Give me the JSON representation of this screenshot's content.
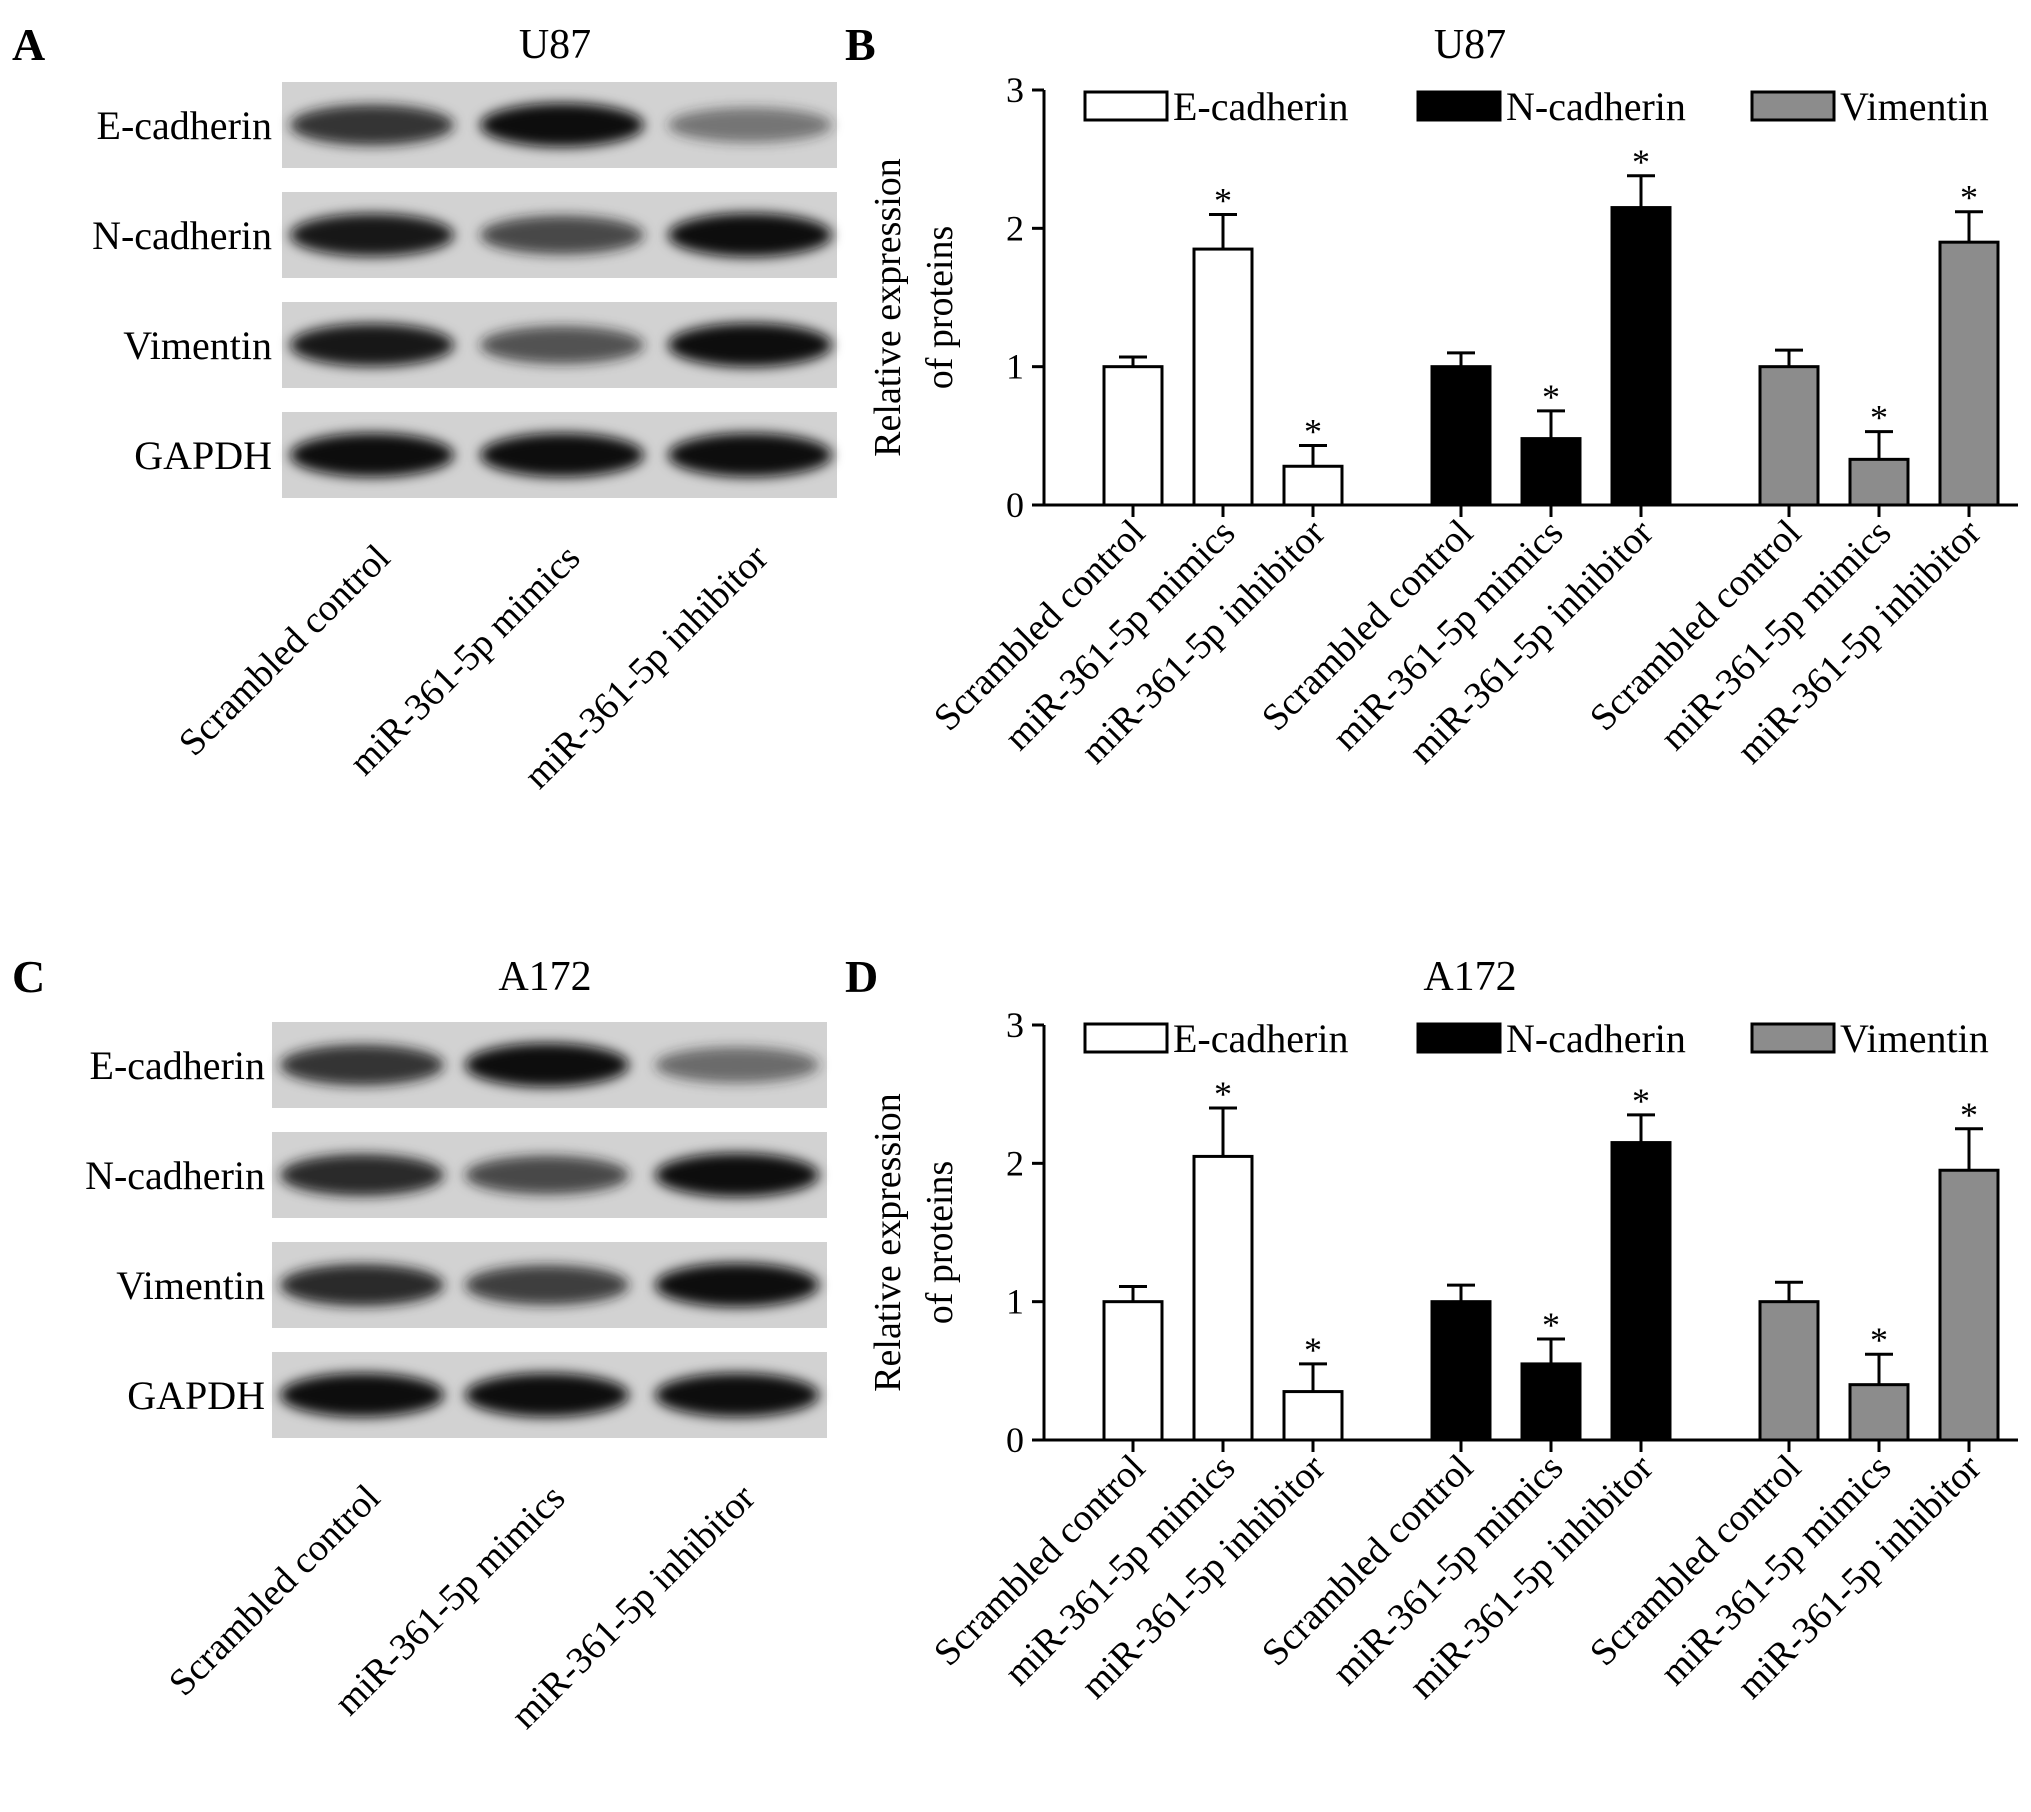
{
  "panels": {
    "A": {
      "letter": "A",
      "title": "U87",
      "blot_rows": [
        "E-cadherin",
        "N-cadherin",
        "Vimentin",
        "GAPDH"
      ],
      "lanes": [
        "Scrambled control",
        "miR-361-5p mimics",
        "miR-361-5p inhibitor"
      ],
      "band_intensity": [
        [
          0.85,
          1.0,
          0.55
        ],
        [
          0.95,
          0.75,
          1.0
        ],
        [
          0.95,
          0.7,
          1.0
        ],
        [
          1.0,
          1.0,
          1.0
        ]
      ]
    },
    "C": {
      "letter": "C",
      "title": "A172",
      "blot_rows": [
        "E-cadherin",
        "N-cadherin",
        "Vimentin",
        "GAPDH"
      ],
      "lanes": [
        "Scrambled control",
        "miR-361-5p mimics",
        "miR-361-5p inhibitor"
      ],
      "band_intensity": [
        [
          0.85,
          1.0,
          0.6
        ],
        [
          0.9,
          0.75,
          1.0
        ],
        [
          0.9,
          0.8,
          1.0
        ],
        [
          1.0,
          1.0,
          1.0
        ]
      ]
    }
  },
  "chart_data": [
    {
      "panel": "B",
      "letter": "B",
      "type": "bar",
      "title": "U87",
      "ylabel_lines": [
        "Relative expression",
        "of proteins"
      ],
      "ylim": [
        0,
        3
      ],
      "yticks": [
        0,
        1,
        2,
        3
      ],
      "categories": [
        "Scrambled control",
        "miR-361-5p mimics",
        "miR-361-5p inhibitor"
      ],
      "legend_position": "top",
      "series": [
        {
          "name": "E-cadherin",
          "color": "#ffffff",
          "values": [
            1.0,
            1.85,
            0.28
          ],
          "errors": [
            0.07,
            0.25,
            0.15
          ],
          "significant": [
            false,
            true,
            true
          ]
        },
        {
          "name": "N-cadherin",
          "color": "#000000",
          "values": [
            1.0,
            0.48,
            2.15
          ],
          "errors": [
            0.1,
            0.2,
            0.23
          ],
          "significant": [
            false,
            true,
            true
          ]
        },
        {
          "name": "Vimentin",
          "color": "#8c8c8c",
          "values": [
            1.0,
            0.33,
            1.9
          ],
          "errors": [
            0.12,
            0.2,
            0.22
          ],
          "significant": [
            false,
            true,
            true
          ]
        }
      ],
      "annotation_symbol": "*"
    },
    {
      "panel": "D",
      "letter": "D",
      "type": "bar",
      "title": "A172",
      "ylabel_lines": [
        "Relative expression",
        "of proteins"
      ],
      "ylim": [
        0,
        3
      ],
      "yticks": [
        0,
        1,
        2,
        3
      ],
      "categories": [
        "Scrambled control",
        "miR-361-5p mimics",
        "miR-361-5p inhibitor"
      ],
      "legend_position": "top",
      "series": [
        {
          "name": "E-cadherin",
          "color": "#ffffff",
          "values": [
            1.0,
            2.05,
            0.35
          ],
          "errors": [
            0.11,
            0.35,
            0.2
          ],
          "significant": [
            false,
            true,
            true
          ]
        },
        {
          "name": "N-cadherin",
          "color": "#000000",
          "values": [
            1.0,
            0.55,
            2.15
          ],
          "errors": [
            0.12,
            0.18,
            0.2
          ],
          "significant": [
            false,
            true,
            true
          ]
        },
        {
          "name": "Vimentin",
          "color": "#8c8c8c",
          "values": [
            1.0,
            0.4,
            1.95
          ],
          "errors": [
            0.14,
            0.22,
            0.3
          ],
          "significant": [
            false,
            true,
            true
          ]
        }
      ],
      "annotation_symbol": "*"
    }
  ]
}
